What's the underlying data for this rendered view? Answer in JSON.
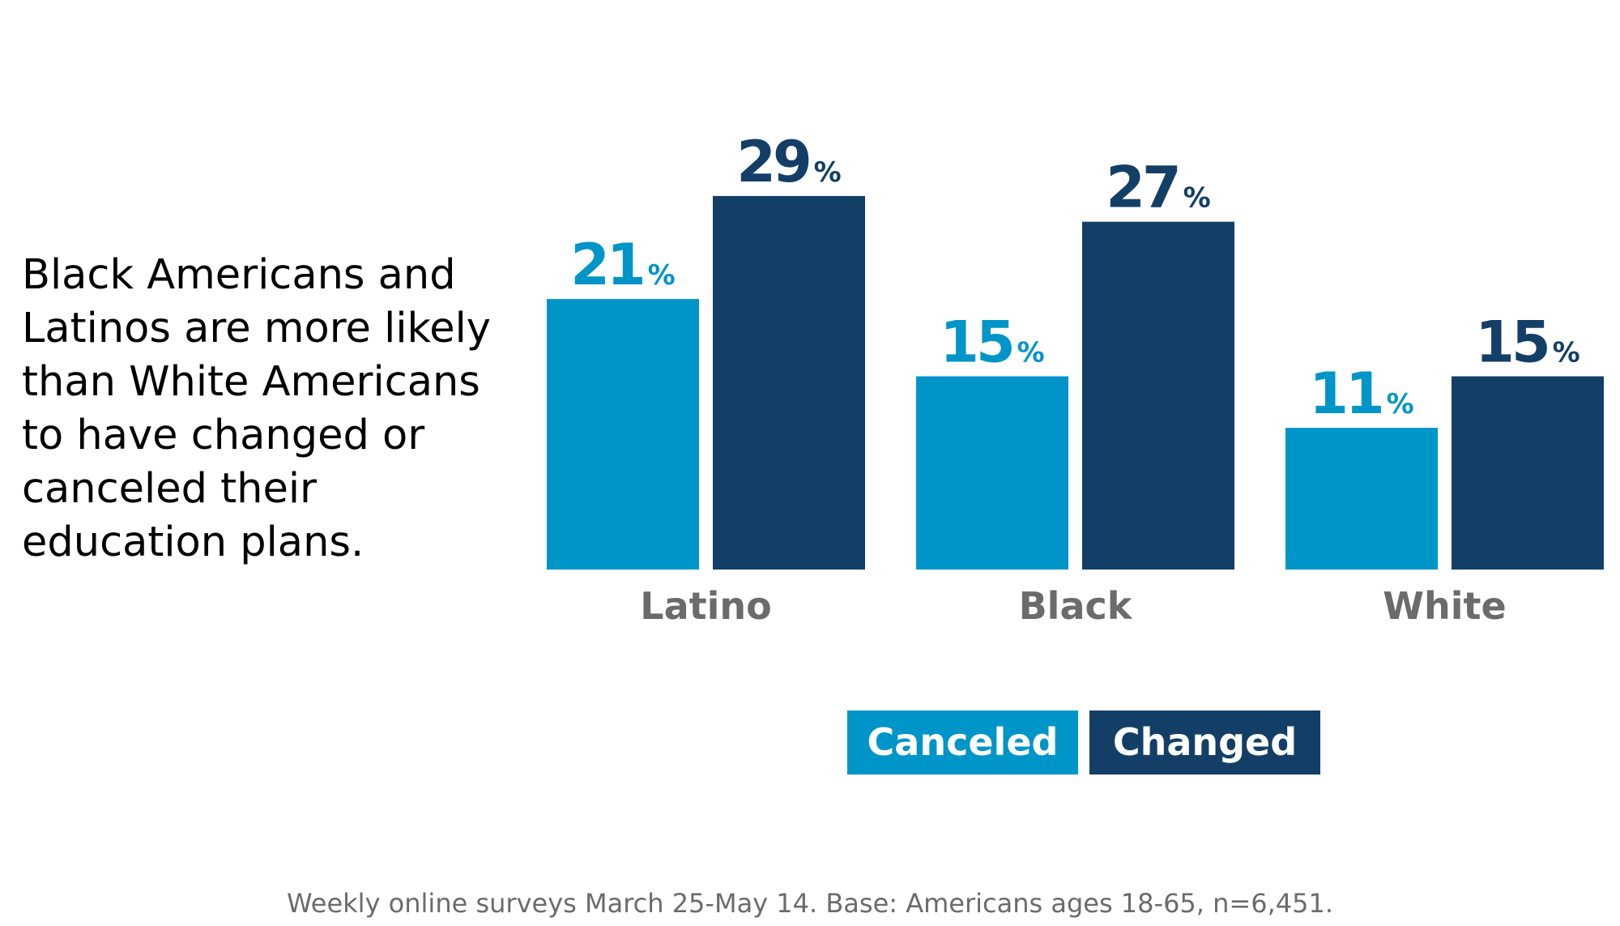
{
  "chart_data": {
    "type": "bar",
    "title": "",
    "subtitle": "Black Americans and Latinos are more likely than White Americans to have changed or canceled their education plans.",
    "xlabel": "",
    "ylabel": "",
    "categories": [
      "Latino",
      "Black",
      "White"
    ],
    "series": [
      {
        "name": "Canceled",
        "values": [
          21,
          15,
          11
        ],
        "color": "#0095c8"
      },
      {
        "name": "Changed",
        "values": [
          29,
          27,
          15
        ],
        "color": "#133f67"
      }
    ],
    "value_suffix": "%",
    "ylim": [
      0,
      30
    ],
    "grid": false,
    "legend": "bottom-center",
    "footnote": "Weekly online surveys March 25-May 14. Base: Americans ages 18-65, n=6,451."
  },
  "subtitle_lines": [
    "Black Americans and",
    "Latinos are more likely",
    "than White Americans",
    "to have changed or",
    "canceled their",
    "education plans."
  ]
}
